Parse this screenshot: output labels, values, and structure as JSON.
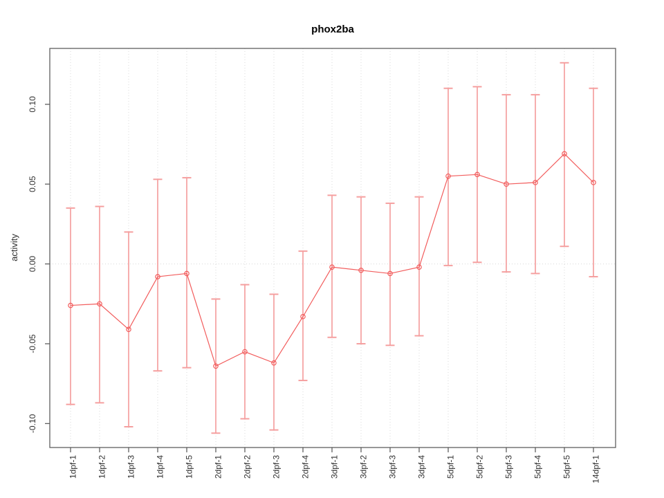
{
  "chart_data": {
    "type": "line",
    "subtype": "points-with-error-bars",
    "title": "phox2ba",
    "ylabel": "activity",
    "xlabel": "",
    "categories": [
      "1dpf-1",
      "1dpf-2",
      "1dpf-3",
      "1dpf-4",
      "1dpf-5",
      "2dpf-1",
      "2dpf-2",
      "2dpf-3",
      "2dpf-4",
      "3dpf-1",
      "3dpf-2",
      "3dpf-3",
      "3dpf-4",
      "5dpf-1",
      "5dpf-2",
      "5dpf-3",
      "5dpf-4",
      "5dpf-5",
      "14dpf-1"
    ],
    "series": [
      {
        "name": "activity",
        "values": [
          -0.026,
          -0.025,
          -0.041,
          -0.008,
          -0.006,
          -0.064,
          -0.055,
          -0.062,
          -0.033,
          -0.002,
          -0.004,
          -0.006,
          -0.002,
          0.055,
          0.056,
          0.05,
          0.051,
          0.069,
          0.051
        ],
        "upper": [
          0.035,
          0.036,
          0.02,
          0.053,
          0.054,
          -0.022,
          -0.013,
          -0.019,
          0.008,
          0.043,
          0.042,
          0.038,
          0.042,
          0.11,
          0.111,
          0.106,
          0.106,
          0.126,
          0.11
        ],
        "lower": [
          -0.088,
          -0.087,
          -0.102,
          -0.067,
          -0.065,
          -0.106,
          -0.097,
          -0.104,
          -0.073,
          -0.046,
          -0.05,
          -0.051,
          -0.045,
          -0.001,
          0.001,
          -0.005,
          -0.006,
          0.011,
          -0.008
        ]
      }
    ],
    "yticks": [
      {
        "label": "-0.10",
        "value": -0.1
      },
      {
        "label": "-0.05",
        "value": -0.05
      },
      {
        "label": "0.00",
        "value": 0.0
      },
      {
        "label": "0.05",
        "value": 0.05
      },
      {
        "label": "0.10",
        "value": 0.1
      }
    ],
    "ylim": [
      -0.115,
      0.135
    ],
    "grid": {
      "vertical_dotted_per_category": true,
      "horizontal_zero_line_dotted": true
    },
    "legend_position": "none",
    "colors": {
      "series_line": "#f25c5c",
      "marker_stroke": "#f25c5c",
      "error_bar": "#f59f9f",
      "grid_line": "#d8d8d8",
      "plot_border": "#5f5f5f",
      "tick_text": "#303030",
      "title_text": "#000000",
      "background": "#ffffff"
    }
  }
}
